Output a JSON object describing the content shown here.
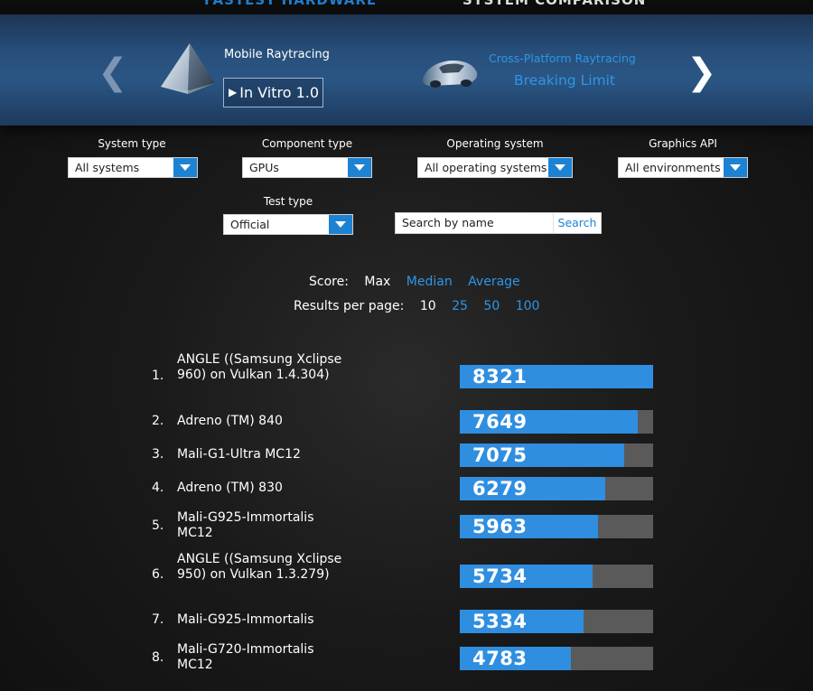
{
  "topnav": {
    "left_label": "FASTEST HARDWARE",
    "right_label": "SYSTEM COMPARISON"
  },
  "banner": {
    "prev_icon": "chevron-left-icon",
    "next_icon": "chevron-right-icon",
    "current": {
      "title": "Mobile Raytracing",
      "name": "In Vitro 1.0",
      "icon": "pyramid-icon"
    },
    "next": {
      "title": "Cross-Platform Raytracing",
      "name": "Breaking Limit",
      "icon": "car-icon"
    }
  },
  "filters": {
    "system_type": {
      "label": "System type",
      "value": "All systems"
    },
    "component_type": {
      "label": "Component type",
      "value": "GPUs"
    },
    "operating_system": {
      "label": "Operating system",
      "value": "All operating systems"
    },
    "graphics_api": {
      "label": "Graphics API",
      "value": "All environments"
    },
    "test_type": {
      "label": "Test type",
      "value": "Official"
    }
  },
  "search": {
    "value": "Search by name",
    "button": "Search"
  },
  "score": {
    "label": "Score:",
    "options": [
      "Max",
      "Median",
      "Average"
    ],
    "selected": "Max"
  },
  "results_per_page": {
    "label": "Results per page:",
    "options": [
      "10",
      "25",
      "50",
      "100"
    ],
    "selected": "10"
  },
  "colors": {
    "accent": "#2f8ee0",
    "bar_track": "#5a5a5a",
    "banner": "#28507c"
  },
  "results": [
    {
      "rank": "1.",
      "name": "ANGLE ((Samsung Xclipse 960) on Vulkan 1.4.304)",
      "score": 8321
    },
    {
      "rank": "2.",
      "name": "Adreno (TM) 840",
      "score": 7649
    },
    {
      "rank": "3.",
      "name": "Mali-G1-Ultra MC12",
      "score": 7075
    },
    {
      "rank": "4.",
      "name": "Adreno (TM) 830",
      "score": 6279
    },
    {
      "rank": "5.",
      "name": "Mali-G925-Immortalis MC12",
      "score": 5963
    },
    {
      "rank": "6.",
      "name": "ANGLE ((Samsung Xclipse 950) on Vulkan 1.3.279)",
      "score": 5734
    },
    {
      "rank": "7.",
      "name": "Mali-G925-Immortalis",
      "score": 5334
    },
    {
      "rank": "8.",
      "name": "Mali-G720-Immortalis MC12",
      "score": 4783
    }
  ]
}
